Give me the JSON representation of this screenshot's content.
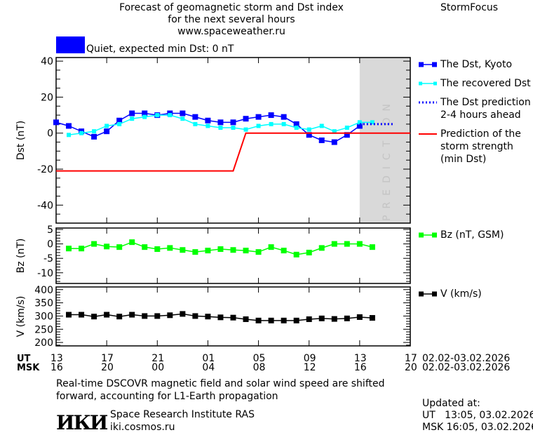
{
  "header": {
    "title_line1": "Forecast of geomagnetic storm and Dst index",
    "title_line2": "for the next several hours",
    "website": "www.spaceweather.ru",
    "brand": "StormFocus"
  },
  "status": {
    "color": "#0000ff",
    "text": "Quiet, expected min Dst: 0 nT"
  },
  "prediction_band_label": "PREDICTION",
  "time_axis": {
    "ut_label": "UT",
    "msk_label": "MSK",
    "ut_ticks": [
      "13",
      "17",
      "21",
      "01",
      "05",
      "09",
      "13",
      "17"
    ],
    "msk_ticks": [
      "16",
      "20",
      "00",
      "04",
      "08",
      "12",
      "16",
      "20"
    ],
    "ut_dates": "02.02-03.02.2026",
    "msk_dates": "02.02-03.02.2026"
  },
  "note_line1": "Real-time DSCOVR magnetic field and solar wind speed are shifted",
  "note_line2": "forward, accounting for L1-Earth propagation",
  "institute": {
    "logo_text": "ИКИ",
    "name": "Space Research Institute RAS",
    "site": "iki.cosmos.ru"
  },
  "updated": {
    "label": "Updated at:",
    "ut": "UT   13:05, 03.02.2026",
    "msk": "MSK 16:05, 03.02.2026"
  },
  "chart_data": [
    {
      "type": "line",
      "ylabel": "Dst (nT)",
      "ylim": [
        -50,
        42
      ],
      "yticks": [
        40,
        20,
        0,
        -20,
        -40
      ],
      "xlim": [
        "2026-02-02 13:00",
        "2026-02-03 17:00"
      ],
      "prediction_region": [
        "2026-02-03 13:00",
        "2026-02-03 17:00"
      ],
      "series": [
        {
          "name": "The Dst, Kyoto",
          "color": "#0000ff",
          "marker": "square",
          "start": "2026-02-02 13:00",
          "values": [
            6,
            4,
            1,
            -2,
            1,
            7,
            11,
            11,
            10,
            11,
            11,
            9,
            7,
            6,
            6,
            8,
            9,
            10,
            9,
            5,
            -1,
            -4,
            -5,
            -1,
            4
          ]
        },
        {
          "name": "The recovered Dst",
          "color": "#00ffff",
          "marker": "square-small",
          "start": "2026-02-02 14:00",
          "values": [
            -1,
            0,
            1,
            4,
            5,
            8,
            9,
            10,
            10,
            8,
            5,
            4,
            3,
            3,
            2,
            4,
            5,
            5,
            3,
            2,
            4,
            1,
            3,
            6,
            6
          ]
        },
        {
          "name": "The Dst prediction\n2-4 hours ahead",
          "color": "#0000ff",
          "style": "dotted",
          "x": [
            "2026-02-03 13:00",
            "2026-02-03 15:45"
          ],
          "values": [
            5,
            5
          ]
        },
        {
          "name": "Prediction of the\nstorm strength\n(min Dst)",
          "color": "#ff0000",
          "style": "step",
          "x": [
            "2026-02-02 13:00",
            "2026-02-03 03:00",
            "2026-02-03 04:00",
            "2026-02-03 17:00"
          ],
          "values": [
            -21,
            -21,
            0,
            0
          ]
        }
      ]
    },
    {
      "type": "line",
      "ylabel": "Bz (nT)",
      "ylim": [
        -13.7,
        5.5
      ],
      "yticks": [
        5,
        0,
        -5,
        -10
      ],
      "series": [
        {
          "name": "Bz (nT, GSM)",
          "color": "#00ff00",
          "marker": "square",
          "start": "2026-02-02 14:00",
          "values": [
            -1.6,
            -1.6,
            0,
            -0.9,
            -1.1,
            0.6,
            -1.1,
            -1.8,
            -1.4,
            -2.1,
            -2.8,
            -2.3,
            -1.8,
            -2.1,
            -2.3,
            -2.8,
            -1.1,
            -2.3,
            -3.7,
            -3.0,
            -1.4,
            0,
            0,
            0,
            -1.1
          ]
        }
      ]
    },
    {
      "type": "line",
      "ylabel": "V (km/s)",
      "ylim": [
        187,
        410
      ],
      "yticks": [
        400,
        350,
        300,
        250,
        200
      ],
      "series": [
        {
          "name": "V (km/s)",
          "color": "#000000",
          "marker": "square",
          "start": "2026-02-02 14:00",
          "values": [
            305,
            305,
            298,
            305,
            298,
            305,
            300,
            300,
            303,
            308,
            300,
            298,
            295,
            294,
            288,
            283,
            283,
            283,
            283,
            288,
            291,
            289,
            291,
            296,
            293
          ]
        }
      ]
    }
  ]
}
